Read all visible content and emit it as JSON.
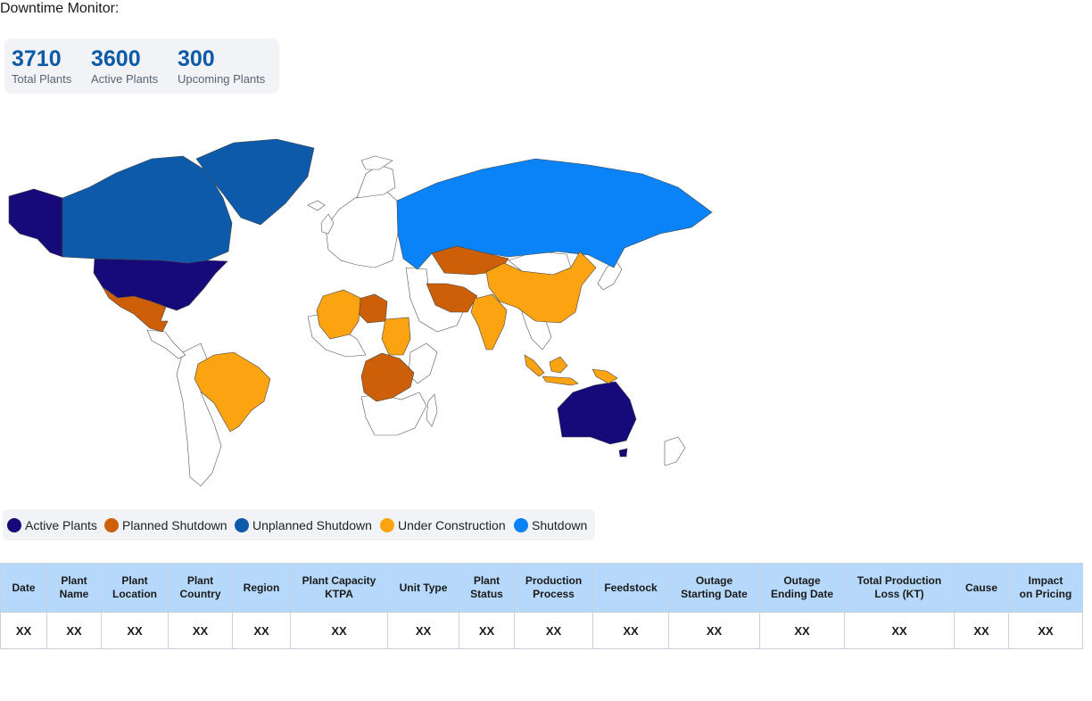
{
  "page": {
    "title": "Downtime Monitor:"
  },
  "stats": [
    {
      "value": "3710",
      "label": "Total Plants"
    },
    {
      "value": "3600",
      "label": "Active Plants"
    },
    {
      "value": "300",
      "label": "Upcoming Plants"
    }
  ],
  "legend": [
    {
      "label": "Active Plants",
      "color": "#160a7a"
    },
    {
      "label": "Planned Shutdown",
      "color": "#cc5f07"
    },
    {
      "label": "Unplanned Shutdown",
      "color": "#0d5aaa"
    },
    {
      "label": "Under Construction",
      "color": "#fca311"
    },
    {
      "label": "Shutdown",
      "color": "#0a83f8"
    }
  ],
  "map": {
    "regions": [
      {
        "name": "Alaska",
        "status": "Active Plants"
      },
      {
        "name": "United States",
        "status": "Active Plants"
      },
      {
        "name": "Australia",
        "status": "Active Plants"
      },
      {
        "name": "Canada",
        "status": "Unplanned Shutdown"
      },
      {
        "name": "Greenland",
        "status": "Unplanned Shutdown"
      },
      {
        "name": "Russia",
        "status": "Shutdown"
      },
      {
        "name": "Mexico",
        "status": "Planned Shutdown"
      },
      {
        "name": "Kazakhstan",
        "status": "Planned Shutdown"
      },
      {
        "name": "Iran",
        "status": "Planned Shutdown"
      },
      {
        "name": "Libya",
        "status": "Planned Shutdown"
      },
      {
        "name": "DR Congo",
        "status": "Planned Shutdown"
      },
      {
        "name": "China",
        "status": "Under Construction"
      },
      {
        "name": "India",
        "status": "Under Construction"
      },
      {
        "name": "Brazil",
        "status": "Under Construction"
      },
      {
        "name": "Sudan",
        "status": "Under Construction"
      },
      {
        "name": "Algeria",
        "status": "Under Construction"
      },
      {
        "name": "Indonesia",
        "status": "Under Construction"
      }
    ]
  },
  "table": {
    "headers": [
      [
        "Date"
      ],
      [
        "Plant",
        "Name"
      ],
      [
        "Plant",
        "Location"
      ],
      [
        "Plant",
        "Country"
      ],
      [
        "Region"
      ],
      [
        "Plant Capacity",
        "KTPA"
      ],
      [
        "Unit Type"
      ],
      [
        "Plant",
        "Status"
      ],
      [
        "Production",
        "Process"
      ],
      [
        "Feedstock"
      ],
      [
        "Outage",
        "Starting Date"
      ],
      [
        "Outage",
        "Ending Date"
      ],
      [
        "Total Production",
        "Loss (KT)"
      ],
      [
        "Cause"
      ],
      [
        "Impact",
        "on Pricing"
      ]
    ],
    "rows": [
      [
        "XX",
        "XX",
        "XX",
        "XX",
        "XX",
        "XX",
        "XX",
        "XX",
        "XX",
        "XX",
        "XX",
        "XX",
        "XX",
        "XX",
        "XX"
      ]
    ]
  }
}
